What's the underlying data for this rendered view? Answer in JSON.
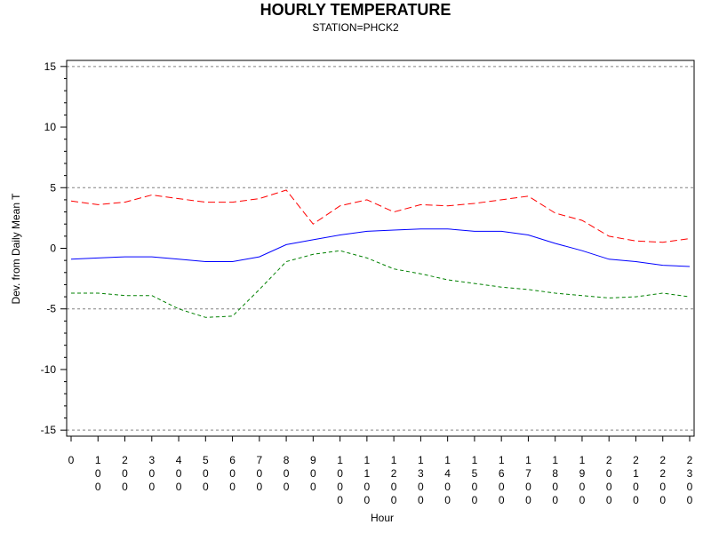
{
  "chart_data": {
    "type": "line",
    "title": "HOURLY TEMPERATURE",
    "subtitle": "STATION=PHCK2",
    "xlabel": "Hour",
    "ylabel": "Dev. from Daily Mean T",
    "x": [
      0,
      100,
      200,
      300,
      400,
      500,
      600,
      700,
      800,
      900,
      1000,
      1100,
      1200,
      1300,
      1400,
      1500,
      1600,
      1700,
      1800,
      1900,
      2000,
      2100,
      2200,
      2300
    ],
    "x_tick_labels": [
      "0",
      "100",
      "200",
      "300",
      "400",
      "500",
      "600",
      "700",
      "800",
      "900",
      "1000",
      "1100",
      "1200",
      "1300",
      "1400",
      "1500",
      "1600",
      "1700",
      "1800",
      "1900",
      "2000",
      "2100",
      "2200",
      "2300"
    ],
    "ylim": [
      -15.5,
      15.5
    ],
    "yticks": [
      -15,
      -10,
      -5,
      0,
      5,
      10,
      15
    ],
    "reference_lines": [
      -15,
      -5,
      5,
      15
    ],
    "grid": false,
    "series": [
      {
        "color": "#ff0000",
        "dash": "dashed",
        "values": [
          3.9,
          3.6,
          3.8,
          4.4,
          4.1,
          3.8,
          3.8,
          4.1,
          4.8,
          2.0,
          3.5,
          4.0,
          3.0,
          3.6,
          3.5,
          3.7,
          4.0,
          4.3,
          2.9,
          2.3,
          1.0,
          0.6,
          0.5,
          0.8
        ]
      },
      {
        "color": "#0000ff",
        "dash": "solid",
        "values": [
          -0.9,
          -0.8,
          -0.7,
          -0.7,
          -0.9,
          -1.1,
          -1.1,
          -0.7,
          0.3,
          0.7,
          1.1,
          1.4,
          1.5,
          1.6,
          1.6,
          1.4,
          1.4,
          1.1,
          0.4,
          -0.2,
          -0.9,
          -1.1,
          -1.4,
          -1.5
        ]
      },
      {
        "color": "#008000",
        "dash": "short-dash",
        "values": [
          -3.7,
          -3.7,
          -3.9,
          -3.9,
          -5.0,
          -5.7,
          -5.6,
          -3.4,
          -1.1,
          -0.5,
          -0.2,
          -0.8,
          -1.7,
          -2.1,
          -2.6,
          -2.9,
          -3.2,
          -3.4,
          -3.7,
          -3.9,
          -4.1,
          -4.0,
          -3.7,
          -4.0
        ]
      }
    ]
  }
}
